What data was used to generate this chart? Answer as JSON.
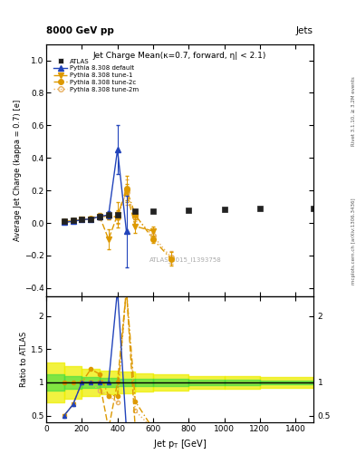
{
  "title_top": "8000 GeV pp",
  "title_right": "Jets",
  "main_title": "Jet Charge Mean(κ=0.7, forward, η| < 2.1)",
  "ylabel_main": "Average Jet Charge (kappa = 0.7) [e]",
  "ylabel_ratio": "Ratio to ATLAS",
  "xlabel": "Jet p_{T} [GeV]",
  "watermark": "ATLAS_2015_I1393758",
  "right_label_top": "Rivet 3.1.10, ≥ 3.2M events",
  "right_label_bot": "mcplots.cern.ch [arXiv:1306.3436]",
  "atlas_x": [
    100,
    150,
    200,
    250,
    300,
    350,
    400,
    500,
    600,
    800,
    1000,
    1200,
    1500
  ],
  "atlas_y": [
    0.01,
    0.015,
    0.02,
    0.025,
    0.04,
    0.05,
    0.05,
    0.07,
    0.07,
    0.08,
    0.085,
    0.09,
    0.09
  ],
  "default_x": [
    100,
    150,
    200,
    250,
    300,
    350,
    400,
    450
  ],
  "default_y": [
    0.005,
    0.01,
    0.02,
    0.025,
    0.04,
    0.05,
    0.45,
    -0.05
  ],
  "default_yerr": [
    0.005,
    0.008,
    0.01,
    0.01,
    0.015,
    0.02,
    0.15,
    0.22
  ],
  "tune1_x": [
    100,
    150,
    200,
    250,
    300,
    350,
    400,
    450,
    500,
    600
  ],
  "tune1_y": [
    0.005,
    0.01,
    0.02,
    0.025,
    0.04,
    -0.1,
    0.05,
    0.19,
    -0.02,
    -0.05
  ],
  "tune1_yerr": [
    0.003,
    0.005,
    0.006,
    0.006,
    0.02,
    0.06,
    0.08,
    0.05,
    0.04,
    0.03
  ],
  "tune2c_x": [
    100,
    150,
    200,
    250,
    300,
    350,
    400,
    450,
    500,
    600,
    700
  ],
  "tune2c_y": [
    0.01,
    0.015,
    0.02,
    0.03,
    0.045,
    0.04,
    0.04,
    0.21,
    0.05,
    -0.1,
    -0.22
  ],
  "tune2c_yerr": [
    0.003,
    0.005,
    0.006,
    0.006,
    0.012,
    0.02,
    0.04,
    0.08,
    0.03,
    0.025,
    0.04
  ],
  "tune2m_x": [
    100,
    150,
    200,
    250,
    300,
    350,
    400,
    450,
    500,
    600,
    700
  ],
  "tune2m_y": [
    0.005,
    0.01,
    0.02,
    0.025,
    0.035,
    0.04,
    0.035,
    0.19,
    0.04,
    -0.08,
    -0.21
  ],
  "tune2m_yerr": [
    0.003,
    0.005,
    0.006,
    0.006,
    0.012,
    0.02,
    0.04,
    0.08,
    0.03,
    0.025,
    0.04
  ],
  "ylim_main": [
    -0.45,
    1.1
  ],
  "ylim_ratio": [
    0.4,
    2.3
  ],
  "xlim": [
    0,
    1500
  ],
  "yticks_main": [
    -0.4,
    -0.2,
    0.0,
    0.2,
    0.4,
    0.6,
    0.8,
    1.0
  ],
  "yticks_ratio": [
    0.5,
    1.0,
    1.5,
    2.0
  ],
  "color_default": "#2244bb",
  "color_tune": "#dd9900",
  "color_tune2m": "#e8b060",
  "color_atlas": "#222222",
  "band_green": "#44dd44",
  "band_yellow": "#eeee00",
  "atlas_band_x": [
    0,
    100,
    200,
    300,
    400,
    500,
    600,
    800,
    1000,
    1200,
    1500
  ],
  "atlas_green_lo": [
    0.88,
    0.9,
    0.92,
    0.93,
    0.94,
    0.95,
    0.95,
    0.96,
    0.96,
    0.97,
    0.97
  ],
  "atlas_green_hi": [
    1.12,
    1.1,
    1.08,
    1.07,
    1.06,
    1.05,
    1.05,
    1.04,
    1.04,
    1.03,
    1.03
  ],
  "atlas_yellow_lo": [
    0.7,
    0.75,
    0.8,
    0.82,
    0.84,
    0.87,
    0.88,
    0.9,
    0.91,
    0.92,
    0.93
  ],
  "atlas_yellow_hi": [
    1.3,
    1.25,
    1.2,
    1.18,
    1.16,
    1.13,
    1.12,
    1.1,
    1.09,
    1.08,
    1.07
  ]
}
